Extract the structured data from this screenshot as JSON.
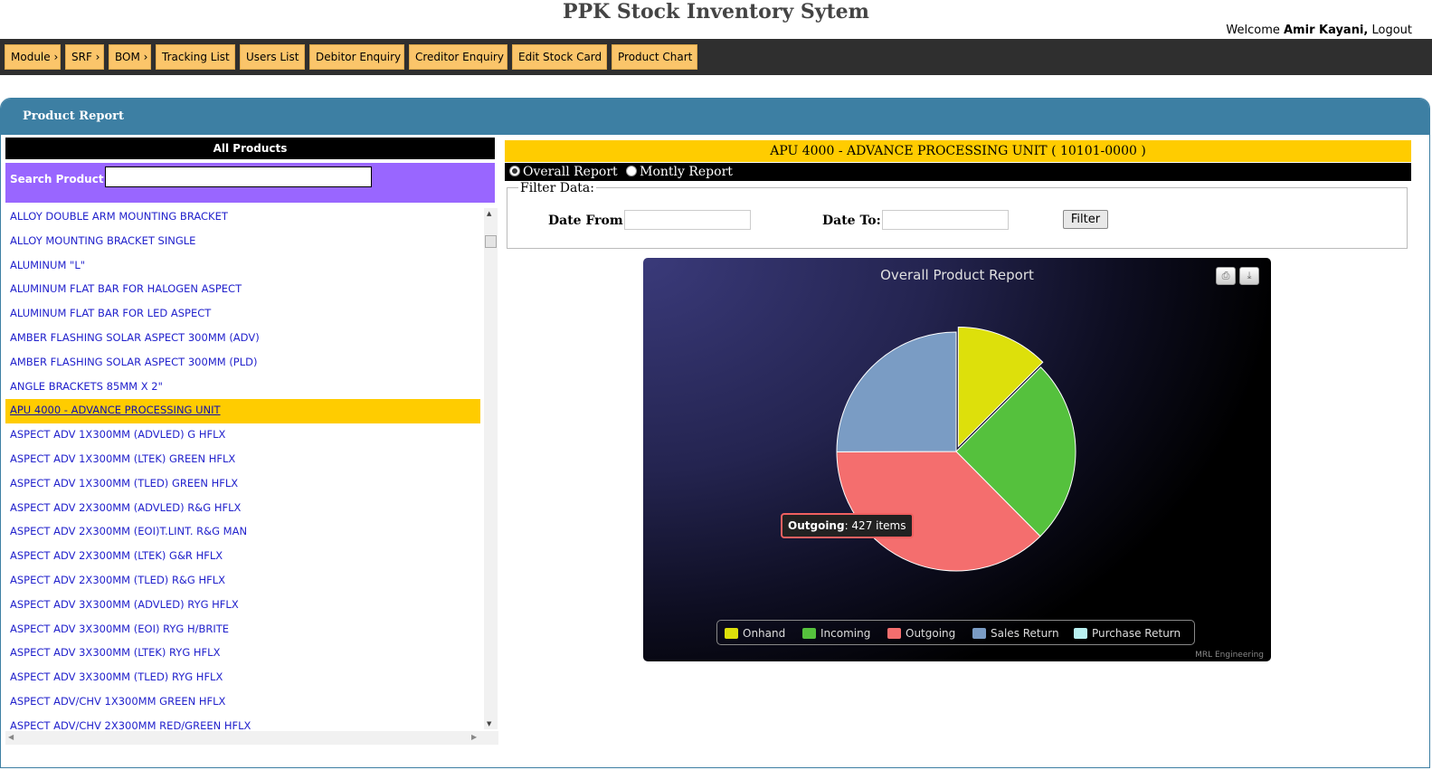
{
  "app": {
    "title": "PPK Stock Inventory Sytem",
    "welcome_prefix": "Welcome",
    "user_name": "Amir Kayani,",
    "logout": "Logout"
  },
  "nav": [
    {
      "label": "Module",
      "arrow": true
    },
    {
      "label": "SRF",
      "arrow": true
    },
    {
      "label": "BOM",
      "arrow": true
    },
    {
      "label": "Tracking List",
      "arrow": false
    },
    {
      "label": "Users List",
      "arrow": false
    },
    {
      "label": "Debitor Enquiry",
      "arrow": false
    },
    {
      "label": "Creditor Enquiry",
      "arrow": false
    },
    {
      "label": "Edit Stock Card",
      "arrow": false
    },
    {
      "label": "Product Chart",
      "arrow": false
    }
  ],
  "panel": {
    "title": "Product Report"
  },
  "products": {
    "header": "All Products",
    "search_label": "Search Product:",
    "search_value": "",
    "selected_index": 8,
    "items": [
      "ALLOY DOUBLE ARM MOUNTING BRACKET",
      "ALLOY MOUNTING BRACKET SINGLE",
      "ALUMINUM \"L\"",
      "ALUMINUM FLAT BAR FOR HALOGEN ASPECT",
      "ALUMINUM FLAT BAR FOR LED ASPECT",
      "AMBER FLASHING SOLAR ASPECT 300MM (ADV)",
      "AMBER FLASHING SOLAR ASPECT 300MM (PLD)",
      "ANGLE BRACKETS 85MM X 2\"",
      "APU 4000 - ADVANCE PROCESSING UNIT",
      "ASPECT ADV 1X300MM (ADVLED) G HFLX",
      "ASPECT ADV 1X300MM (LTEK) GREEN HFLX",
      "ASPECT ADV 1X300MM (TLED) GREEN HFLX",
      "ASPECT ADV 2X300MM (ADVLED) R&G HFLX",
      "ASPECT ADV 2X300MM (EOI)T.LINT. R&G MAN",
      "ASPECT ADV 2X300MM (LTEK) G&R HFLX",
      "ASPECT ADV 2X300MM (TLED) R&G HFLX",
      "ASPECT ADV 3X300MM (ADVLED) RYG HFLX",
      "ASPECT ADV 3X300MM (EOI) RYG H/BRITE",
      "ASPECT ADV 3X300MM (LTEK) RYG HFLX",
      "ASPECT ADV 3X300MM (TLED) RYG HFLX",
      "ASPECT ADV/CHV 1X300MM GREEN HFLX",
      "ASPECT ADV/CHV 2X300MM RED/GREEN HFLX"
    ]
  },
  "report": {
    "product_title": "APU 4000 - ADVANCE PROCESSING UNIT ( 10101-0000 )",
    "radio_overall": "Overall Report",
    "radio_monthly": "Montly Report",
    "filter_legend": "Filter Data:",
    "date_from_label": "Date From:",
    "date_to_label": "Date To:",
    "date_from_value": "",
    "date_to_value": "",
    "filter_button": "Filter"
  },
  "chart_data": {
    "type": "pie",
    "title": "Overall Product Report",
    "credit": "MRL Engineering",
    "legend_position": "bottom",
    "unit": "items",
    "categories": [
      "Onhand",
      "Incoming",
      "Outgoing",
      "Sales Return",
      "Purchase Return"
    ],
    "values": [
      143,
      286,
      427,
      286,
      0
    ],
    "colors": [
      "#dde00b",
      "#55c13d",
      "#f46e6e",
      "#7a9cc4",
      "#b8f0f0"
    ],
    "sliced_index": 0,
    "tooltip": {
      "category": "Outgoing",
      "value": 427,
      "text": ": 427 items"
    }
  }
}
